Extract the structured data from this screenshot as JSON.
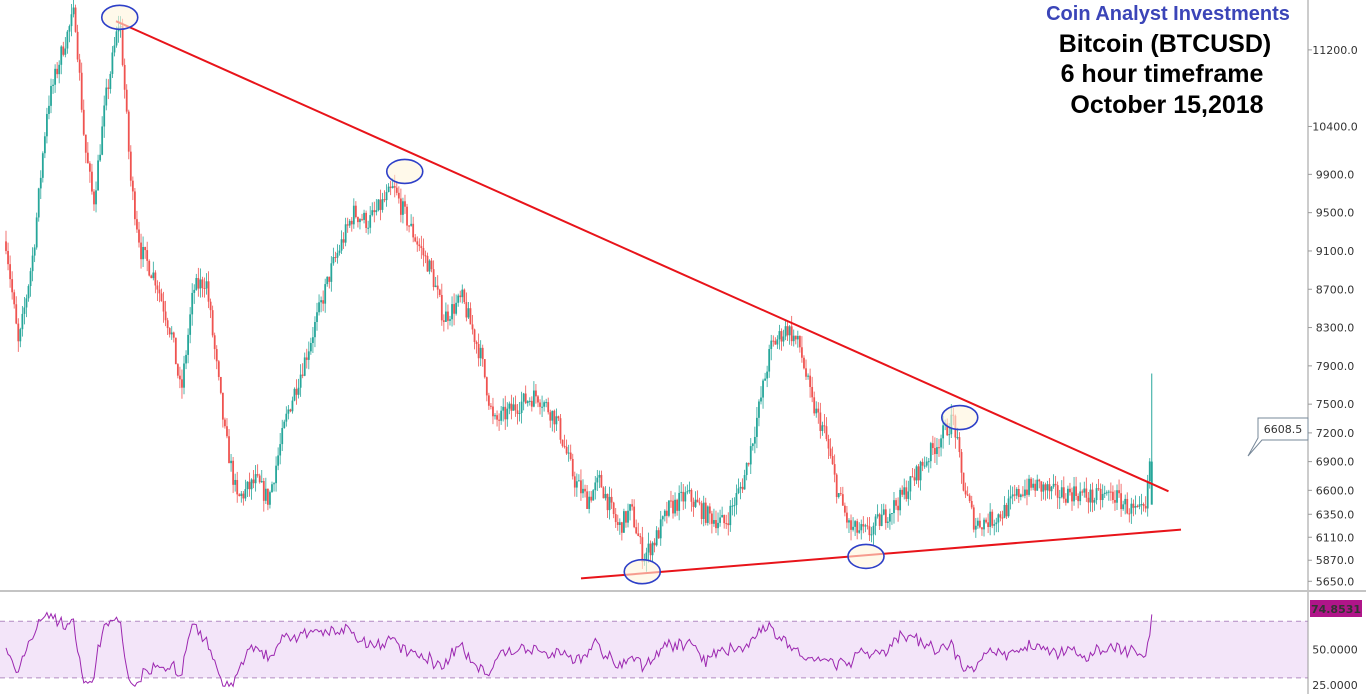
{
  "colors": {
    "up": "#26a69a",
    "down": "#ef5350",
    "trendline": "#e8141a",
    "highlight_stroke": "#2d3fc8",
    "highlight_fill": "#fff5dc",
    "rsi_line": "#9c27b0",
    "rsi_band": "#f3e5f9",
    "rsi_dash": "#b28cc2",
    "price_label_bg": "#ffffff",
    "price_label_border": "#778899",
    "rsi_label_bg": "#b01589",
    "rsi_label_text": "#ffffff"
  },
  "chart_data": [
    {
      "type": "candlestick",
      "source_label": "Coin Analyst Investments",
      "title": "Bitcoin (BTCUSD)",
      "subtitle": "6 hour timeframe",
      "date_label": "October 15,2018",
      "y_ticks": [
        "11200.0",
        "10400.0",
        "9900.0",
        "9500.0",
        "9100.0",
        "8700.0",
        "8300.0",
        "7900.0",
        "7500.0",
        "7200.0",
        "6900.0",
        "6600.0",
        "6350.0",
        "6110.0",
        "5870.0",
        "5650.0"
      ],
      "y_tick_values": [
        11200,
        10400,
        9900,
        9500,
        9100,
        8700,
        8300,
        7900,
        7500,
        7200,
        6900,
        6600,
        6350,
        6110,
        5870,
        5650
      ],
      "ylim": [
        5580,
        11700
      ],
      "last_price_label": "6608.5",
      "last_price": 6608.5,
      "trendlines": [
        {
          "name": "resistance",
          "from": [
            0.088,
            11500
          ],
          "to": [
            0.93,
            6590
          ]
        },
        {
          "name": "support",
          "from": [
            0.46,
            5680
          ],
          "to": [
            0.94,
            6190
          ]
        }
      ],
      "price_path": [
        [
          0.0,
          9200
        ],
        [
          0.01,
          8100
        ],
        [
          0.022,
          9100
        ],
        [
          0.033,
          10600
        ],
        [
          0.045,
          11200
        ],
        [
          0.055,
          11600
        ],
        [
          0.063,
          10200
        ],
        [
          0.07,
          9600
        ],
        [
          0.08,
          10700
        ],
        [
          0.091,
          11550
        ],
        [
          0.1,
          9800
        ],
        [
          0.108,
          9100
        ],
        [
          0.12,
          8800
        ],
        [
          0.133,
          8200
        ],
        [
          0.14,
          7600
        ],
        [
          0.15,
          8700
        ],
        [
          0.16,
          8800
        ],
        [
          0.175,
          7200
        ],
        [
          0.185,
          6500
        ],
        [
          0.2,
          6700
        ],
        [
          0.21,
          6500
        ],
        [
          0.225,
          7400
        ],
        [
          0.24,
          8000
        ],
        [
          0.26,
          8900
        ],
        [
          0.278,
          9500
        ],
        [
          0.29,
          9400
        ],
        [
          0.31,
          9750
        ],
        [
          0.325,
          9300
        ],
        [
          0.34,
          8900
        ],
        [
          0.35,
          8400
        ],
        [
          0.365,
          8600
        ],
        [
          0.38,
          8000
        ],
        [
          0.39,
          7300
        ],
        [
          0.41,
          7500
        ],
        [
          0.425,
          7600
        ],
        [
          0.44,
          7350
        ],
        [
          0.455,
          6700
        ],
        [
          0.465,
          6500
        ],
        [
          0.475,
          6700
        ],
        [
          0.49,
          6200
        ],
        [
          0.5,
          6400
        ],
        [
          0.51,
          5900
        ],
        [
          0.52,
          6100
        ],
        [
          0.53,
          6400
        ],
        [
          0.545,
          6550
        ],
        [
          0.56,
          6350
        ],
        [
          0.575,
          6250
        ],
        [
          0.59,
          6700
        ],
        [
          0.6,
          7300
        ],
        [
          0.612,
          8100
        ],
        [
          0.625,
          8300
        ],
        [
          0.635,
          8100
        ],
        [
          0.645,
          7500
        ],
        [
          0.655,
          7200
        ],
        [
          0.665,
          6600
        ],
        [
          0.675,
          6200
        ],
        [
          0.69,
          6150
        ],
        [
          0.7,
          6300
        ],
        [
          0.715,
          6500
        ],
        [
          0.73,
          6800
        ],
        [
          0.745,
          7100
        ],
        [
          0.758,
          7350
        ],
        [
          0.765,
          6700
        ],
        [
          0.775,
          6250
        ],
        [
          0.79,
          6300
        ],
        [
          0.8,
          6400
        ],
        [
          0.812,
          6600
        ],
        [
          0.825,
          6650
        ],
        [
          0.84,
          6560
        ],
        [
          0.855,
          6580
        ],
        [
          0.87,
          6520
        ],
        [
          0.885,
          6560
        ],
        [
          0.895,
          6450
        ],
        [
          0.905,
          6350
        ],
        [
          0.912,
          6380
        ],
        [
          0.915,
          6900
        ]
      ],
      "highlights": [
        {
          "x": 0.091,
          "price": 11540
        },
        {
          "x": 0.319,
          "price": 9930
        },
        {
          "x": 0.509,
          "price": 5750
        },
        {
          "x": 0.688,
          "price": 5910
        },
        {
          "x": 0.763,
          "price": 7360
        }
      ]
    },
    {
      "type": "line",
      "name": "RSI",
      "y_ticks": [
        "50.0000",
        "25.0000"
      ],
      "y_tick_values": [
        50,
        25
      ],
      "ylim": [
        20,
        90
      ],
      "band": [
        30,
        70
      ],
      "last_value_label": "74.8531",
      "last_value": 74.8531
    }
  ]
}
